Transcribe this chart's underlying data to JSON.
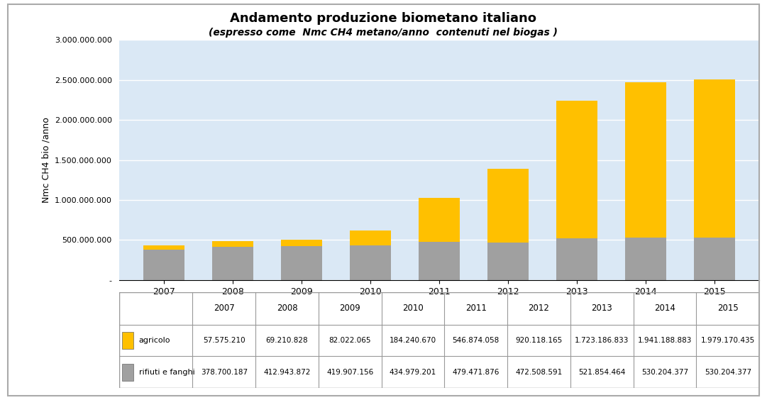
{
  "title_line1": "Andamento produzione biometano italiano",
  "title_line2": "(espresso come  Nmc CH4 metano/anno  contenuti nel biogas )",
  "years": [
    "2007",
    "2008",
    "2009",
    "2010",
    "2011",
    "2012",
    "2013",
    "2014",
    "2015"
  ],
  "agricolo": [
    57575210,
    69210828,
    82022065,
    184240670,
    546874058,
    920118165,
    1723186833,
    1941188883,
    1979170435
  ],
  "rifiuti_fanghi": [
    378700187,
    412943872,
    419907156,
    434979201,
    479471876,
    472508591,
    521854464,
    530204377,
    530204377
  ],
  "color_agricolo": "#FFC000",
  "color_rifiuti": "#A0A0A0",
  "ylabel": "Nmc CH4 bio /anno",
  "ylim": [
    0,
    3000000000
  ],
  "yticks": [
    0,
    500000000,
    1000000000,
    1500000000,
    2000000000,
    2500000000,
    3000000000
  ],
  "ytick_labels": [
    "-",
    "500.000.000",
    "1.000.000.000",
    "1.500.000.000",
    "2.000.000.000",
    "2.500.000.000",
    "3.000.000.000"
  ],
  "legend_agricolo": "agricolo",
  "legend_rifiuti": "rifiuti e fanghi",
  "background_color": "#DAE8F5",
  "figure_background": "#FFFFFF",
  "outer_box_color": "#CCCCCC",
  "table_agricolo_values": [
    "57.575.210",
    "69.210.828",
    "82.022.065",
    "184.240.670",
    "546.874.058",
    "920.118.165",
    "1.723.186.833",
    "1.941.188.883",
    "1.979.170.435"
  ],
  "table_rifiuti_values": [
    "378.700.187",
    "412.943.872",
    "419.907.156",
    "434.979.201",
    "479.471.876",
    "472.508.591",
    "521.854.464",
    "530.204.377",
    "530.204.377"
  ]
}
